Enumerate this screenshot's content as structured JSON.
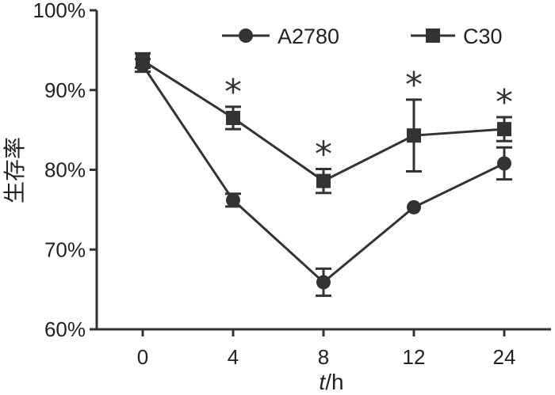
{
  "chart_data": {
    "type": "line",
    "categories": [
      "0",
      "4",
      "8",
      "12",
      "24"
    ],
    "ylabel": "生存率",
    "xlabel": "t/h",
    "ylim": [
      60,
      100
    ],
    "y_ticks": [
      "60%",
      "70%",
      "80%",
      "90%",
      "100%"
    ],
    "grid": false,
    "legend_position": "top",
    "series": [
      {
        "name": "A2780",
        "marker": "circle",
        "color": "#333333",
        "values": [
          93.1,
          76.2,
          65.9,
          75.3,
          80.8
        ],
        "errors": [
          0.8,
          0.8,
          1.7,
          0.0,
          2.0
        ]
      },
      {
        "name": "C30",
        "marker": "square",
        "color": "#333333",
        "values": [
          93.7,
          86.5,
          78.6,
          84.3,
          85.1
        ],
        "errors": [
          0.9,
          1.4,
          1.5,
          4.5,
          1.5
        ]
      }
    ],
    "significance": {
      "symbol": "*",
      "at_categories": [
        "4",
        "8",
        "12",
        "24"
      ]
    }
  }
}
